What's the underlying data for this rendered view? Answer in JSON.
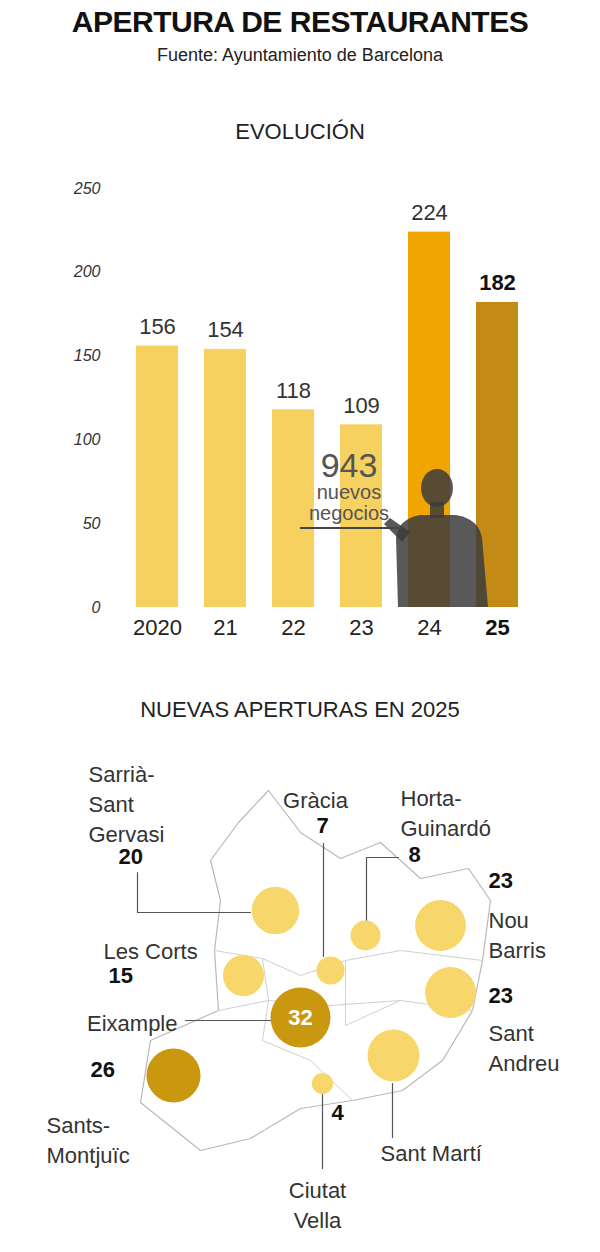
{
  "title": "APERTURA DE RESTAURANTES",
  "subtitle": "Fuente: Ayuntamiento de Barcelona",
  "chart_data": [
    {
      "type": "bar",
      "title": "EVOLUCIÓN",
      "categories": [
        "2020",
        "21",
        "22",
        "23",
        "24",
        "25"
      ],
      "values": [
        156,
        154,
        118,
        109,
        224,
        182
      ],
      "colors": [
        "#f7d160",
        "#f7d160",
        "#f7d160",
        "#f7d160",
        "#f0a500",
        "#c38a15"
      ],
      "ylim": [
        0,
        250
      ],
      "yticks": [
        0,
        50,
        100,
        150,
        200,
        250
      ],
      "grid": false,
      "data_labels": true,
      "annotation": {
        "value": 943,
        "label": "nuevos negocios"
      }
    },
    {
      "type": "bubble_map",
      "title": "NUEVAS APERTURAS EN 2025",
      "categories": [
        "Sarrià-Sant Gervasi",
        "Gràcia",
        "Horta-Guinardó",
        "Nou Barris",
        "Les Corts",
        "Eixample",
        "Sant Andreu",
        "Sants-Montjuïc",
        "Sant Martí",
        "Ciutat Vella"
      ],
      "values": [
        20,
        7,
        8,
        23,
        15,
        32,
        23,
        26,
        24,
        4
      ],
      "value_labels": [
        "20",
        "7",
        "8",
        "23",
        "15",
        "32",
        "23",
        "26",
        null,
        "4"
      ],
      "colors": [
        "#f7d66b",
        "#f7d66b",
        "#f7d66b",
        "#f7d66b",
        "#f7d66b",
        "#c9980e",
        "#f7d66b",
        "#c9980e",
        "#f7d66b",
        "#f7d66b"
      ],
      "data_labels": true
    }
  ]
}
